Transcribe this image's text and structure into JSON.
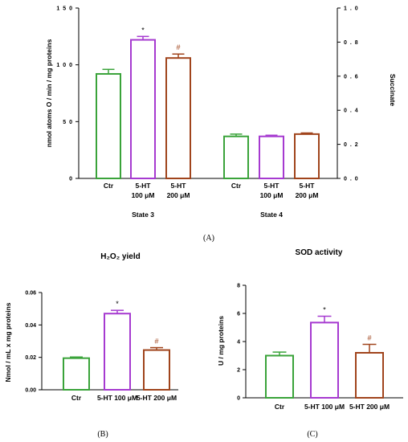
{
  "colors": {
    "ctr": "#3aa33a",
    "ht100": "#a63ad0",
    "ht200": "#a0441c",
    "sig": "#a0441c"
  },
  "panel_labels": {
    "a": "(A)",
    "b": "(B)",
    "c": "(C)"
  },
  "chart_data": [
    {
      "type": "bar",
      "ylabel": "nmol atoms O / min / mg proteins",
      "right_axis_label": "Succinate",
      "yticks": [
        "0",
        "5 0",
        "1 0 0",
        "1 5 0"
      ],
      "ylim": [
        0,
        150
      ],
      "right_yticks": [
        "0 . 0",
        "0 . 2",
        "0 . 4",
        "0 . 6",
        "0 . 8",
        "1 . 0"
      ],
      "right_ylim": [
        0,
        1.0
      ],
      "groups": [
        {
          "label": "State 3",
          "bars": [
            {
              "label": "Ctr",
              "value": 92,
              "error": 4,
              "mark": ""
            },
            {
              "label": "5-HT\n100 μM",
              "value": 122,
              "error": 3,
              "mark": "*"
            },
            {
              "label": "5-HT\n200 μM",
              "value": 106,
              "error": 3.5,
              "mark": "#"
            }
          ]
        },
        {
          "label": "State 4",
          "bars": [
            {
              "label": "Ctr",
              "value": 37,
              "error": 2,
              "mark": ""
            },
            {
              "label": "5-HT\n100 μM",
              "value": 37,
              "error": 1,
              "mark": ""
            },
            {
              "label": "5-HT\n200 μM",
              "value": 39,
              "error": 1,
              "mark": ""
            }
          ]
        }
      ]
    },
    {
      "type": "bar",
      "title": "H₂O₂ yield",
      "ylabel": "Nmol / mL x mg proteins",
      "yticks": [
        "0.00",
        "0.02",
        "0.04",
        "0.06"
      ],
      "ylim": [
        0,
        0.06
      ],
      "categories": [
        "Ctr",
        "5-HT 100 μM",
        "5-HT 200 μM"
      ],
      "values": [
        0.0195,
        0.047,
        0.0245
      ],
      "errors": [
        0.0007,
        0.002,
        0.0015
      ],
      "marks": [
        "",
        "*",
        "#"
      ]
    },
    {
      "type": "bar",
      "title": "SOD activity",
      "ylabel": "U / mg proteins",
      "yticks": [
        "0",
        "2",
        "4",
        "6",
        "8"
      ],
      "ylim": [
        0,
        8
      ],
      "categories": [
        "Ctr",
        "5-HT 100 μM",
        "5-HT 200 μM"
      ],
      "values": [
        3.0,
        5.35,
        3.2
      ],
      "errors": [
        0.25,
        0.45,
        0.6
      ],
      "marks": [
        "",
        "*",
        "#"
      ]
    }
  ]
}
